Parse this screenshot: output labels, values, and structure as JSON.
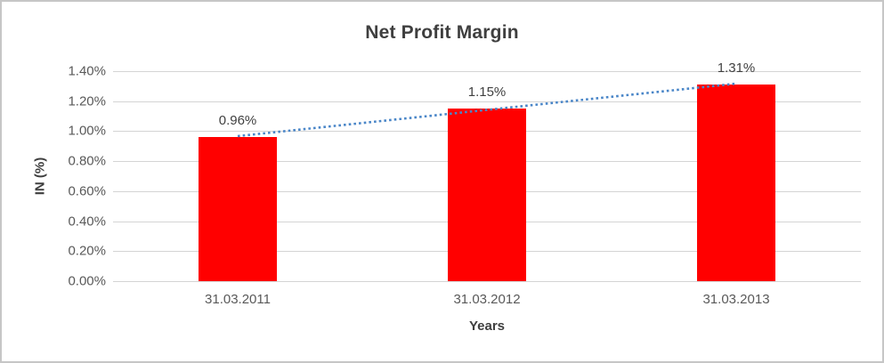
{
  "chart_data": {
    "type": "bar",
    "title": "Net Profit Margin",
    "xlabel": "Years",
    "ylabel": "IN (%)",
    "categories": [
      "31.03.2011",
      "31.03.2012",
      "31.03.2013"
    ],
    "values": [
      0.96,
      1.15,
      1.31
    ],
    "data_labels": [
      "0.96%",
      "1.15%",
      "1.31%"
    ],
    "ylim": [
      0,
      1.4
    ],
    "ytick_labels": [
      "0.00%",
      "0.20%",
      "0.40%",
      "0.60%",
      "0.80%",
      "1.00%",
      "1.20%",
      "1.40%"
    ],
    "grid": true,
    "legend": "none",
    "bar_color": "#FF0000",
    "trendline": {
      "type": "linear",
      "style": "dotted",
      "color": "#4A86C8",
      "start_value": 0.967,
      "end_value": 1.317
    }
  }
}
